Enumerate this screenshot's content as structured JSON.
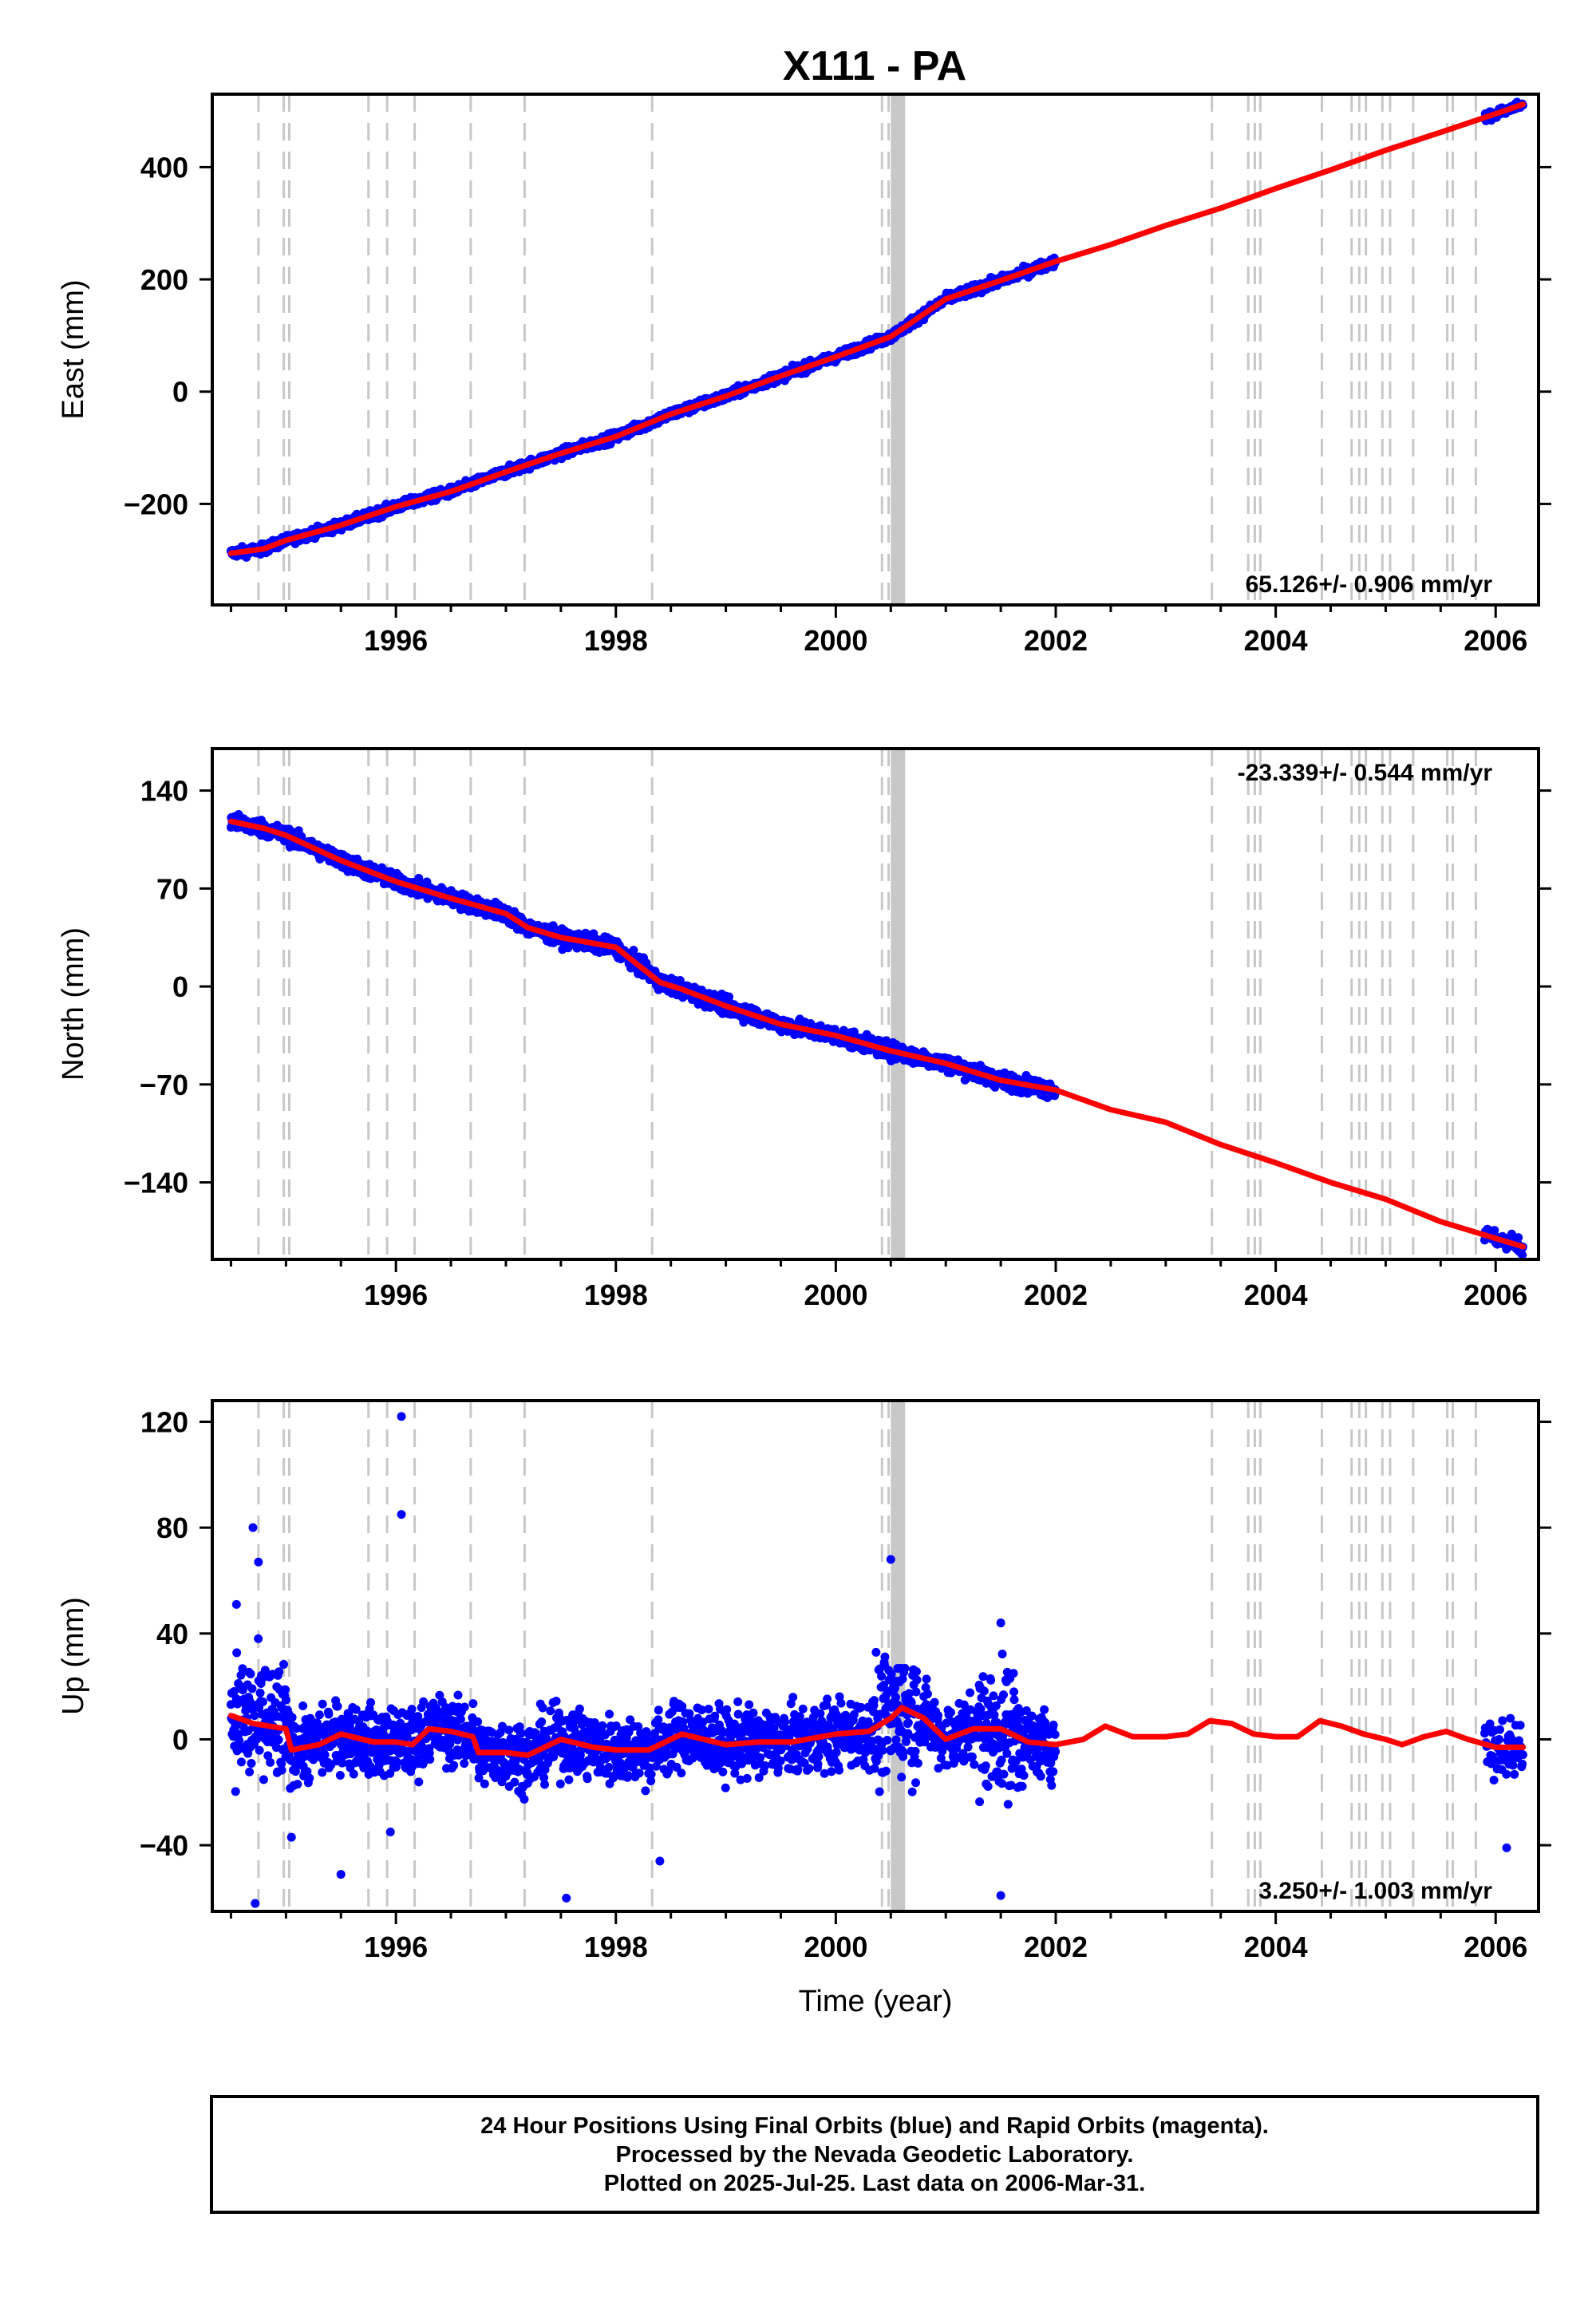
{
  "title": "X111 - PA",
  "colors": {
    "final_orbits": "#0000ff",
    "model": "#ff0000",
    "event_lines": "#c8c8c8",
    "axes": "#000000"
  },
  "footer": {
    "line1": "24 Hour Positions Using Final Orbits (blue) and Rapid Orbits (magenta).",
    "line2": "Processed by the Nevada Geodetic Laboratory.",
    "line3": "Plotted on 2025-Jul-25. Last data on 2006-Mar-31."
  },
  "chart_data": [
    {
      "type": "scatter",
      "component": "east",
      "ylabel": "East (mm)",
      "xlabel": "",
      "rate_label": "65.126+/- 0.906 mm/yr",
      "rate_position": "bottom-right",
      "xlim": [
        1994.33,
        2006.39
      ],
      "ylim": [
        -380,
        530
      ],
      "xticks": [
        1996,
        1998,
        2000,
        2002,
        2004,
        2006
      ],
      "yticks": [
        -200,
        0,
        200,
        400
      ],
      "data_span": [
        1994.5,
        2002.0
      ],
      "late_data_span": [
        2005.9,
        2006.25
      ],
      "rate_mm_per_yr": 65.126,
      "scatter_noise_mm": 6,
      "model": {
        "x": [
          1994.5,
          1994.8,
          1995.0,
          1995.5,
          1996.0,
          1996.5,
          1997.0,
          1997.5,
          1998.0,
          1998.5,
          1999.0,
          1999.5,
          2000.0,
          2000.5,
          2001.0,
          2001.5,
          2002.0,
          2002.5,
          2003.0,
          2003.5,
          2004.0,
          2004.5,
          2005.0,
          2005.5,
          2006.0,
          2006.25
        ],
        "y": [
          -288,
          -280,
          -265,
          -238,
          -205,
          -178,
          -143,
          -110,
          -80,
          -40,
          -8,
          28,
          62,
          98,
          165,
          198,
          232,
          262,
          296,
          327,
          362,
          395,
          430,
          462,
          495,
          512
        ]
      }
    },
    {
      "type": "scatter",
      "component": "north",
      "ylabel": "North (mm)",
      "xlabel": "",
      "rate_label": "-23.339+/- 0.544 mm/yr",
      "rate_position": "top-right",
      "xlim": [
        1994.33,
        2006.39
      ],
      "ylim": [
        -195,
        170
      ],
      "xticks": [
        1996,
        1998,
        2000,
        2002,
        2004,
        2006
      ],
      "yticks": [
        -140,
        -70,
        0,
        70,
        140
      ],
      "data_span": [
        1994.5,
        2002.0
      ],
      "late_data_span": [
        2005.9,
        2006.25
      ],
      "rate_mm_per_yr": -23.339,
      "scatter_noise_mm": 4,
      "model": {
        "x": [
          1994.5,
          1994.8,
          1995.0,
          1995.5,
          1996.0,
          1996.5,
          1997.0,
          1997.2,
          1997.5,
          1998.0,
          1998.4,
          1998.6,
          1999.0,
          1999.5,
          2000.0,
          2000.5,
          2001.0,
          2001.5,
          2002.0,
          2002.5,
          2003.0,
          2003.5,
          2004.0,
          2004.5,
          2005.0,
          2005.5,
          2006.0,
          2006.25
        ],
        "y": [
          118,
          113,
          108,
          90,
          75,
          63,
          52,
          42,
          35,
          28,
          3,
          -2,
          -14,
          -27,
          -35,
          -46,
          -55,
          -67,
          -74,
          -88,
          -97,
          -113,
          -126,
          -140,
          -152,
          -168,
          -180,
          -186
        ]
      }
    },
    {
      "type": "scatter",
      "component": "up",
      "ylabel": "Up (mm)",
      "xlabel": "Time (year)",
      "rate_label": "3.250+/- 1.003 mm/yr",
      "rate_position": "bottom-right",
      "xlim": [
        1994.33,
        2006.39
      ],
      "ylim": [
        -65,
        128
      ],
      "xticks": [
        1996,
        1998,
        2000,
        2002,
        2004,
        2006
      ],
      "yticks": [
        -40,
        0,
        40,
        80,
        120
      ],
      "data_span": [
        1994.5,
        2002.0
      ],
      "late_data_span": [
        2005.9,
        2006.25
      ],
      "rate_mm_per_yr": 3.25,
      "scatter_noise_mm": 9,
      "outliers": [
        {
          "x": 1996.05,
          "y": 122
        },
        {
          "x": 1996.05,
          "y": 85
        },
        {
          "x": 1994.7,
          "y": 80
        },
        {
          "x": 1994.75,
          "y": 67
        },
        {
          "x": 2000.5,
          "y": 68
        },
        {
          "x": 1994.55,
          "y": 51
        },
        {
          "x": 2001.5,
          "y": 44
        },
        {
          "x": 1994.72,
          "y": -62
        },
        {
          "x": 1997.55,
          "y": -60
        },
        {
          "x": 2001.5,
          "y": -59
        },
        {
          "x": 1995.5,
          "y": -51
        },
        {
          "x": 1998.4,
          "y": -46
        },
        {
          "x": 2006.1,
          "y": -41
        },
        {
          "x": 1995.95,
          "y": -35
        },
        {
          "x": 1995.05,
          "y": -37
        }
      ],
      "model": {
        "x": [
          1994.5,
          1994.7,
          1995.0,
          1995.05,
          1995.3,
          1995.5,
          1995.8,
          1996.0,
          1996.15,
          1996.3,
          1996.5,
          1996.7,
          1996.75,
          1997.0,
          1997.2,
          1997.5,
          1997.8,
          1998.0,
          1998.3,
          1998.6,
          1999.0,
          1999.3,
          1999.6,
          2000.0,
          2000.3,
          2000.5,
          2000.6,
          2000.8,
          2001.0,
          2001.25,
          2001.5,
          2001.75,
          2002.0,
          2002.25,
          2002.45,
          2002.7,
          2003.0,
          2003.2,
          2003.4,
          2003.6,
          2003.8,
          2004.0,
          2004.2,
          2004.4,
          2004.6,
          2004.8,
          2005.0,
          2005.15,
          2005.35,
          2005.55,
          2005.75,
          2006.0,
          2006.25
        ],
        "y": [
          9,
          6,
          4,
          -4,
          -2,
          2,
          -1,
          -1,
          -2,
          4,
          3,
          1,
          -5,
          -5,
          -6,
          0,
          -3,
          -4,
          -4,
          2,
          -2,
          -1,
          -1,
          2,
          3,
          8,
          12,
          8,
          0,
          4,
          4,
          -1,
          -2,
          0,
          5,
          1,
          1,
          2,
          7,
          6,
          2,
          1,
          1,
          7,
          5,
          2,
          0,
          -2,
          1,
          3,
          0,
          -3,
          -3
        ]
      }
    }
  ],
  "event_lines": {
    "dashed": [
      1994.75,
      1994.98,
      1995.03,
      1995.75,
      1995.92,
      1996.17,
      1996.68,
      1997.17,
      1998.33,
      2000.42,
      2000.48,
      2003.42,
      2003.75,
      2003.81,
      2003.86,
      2004.42,
      2004.69,
      2004.76,
      2004.82,
      2004.97,
      2005.04,
      2005.25,
      2005.56,
      2005.61,
      2005.82
    ],
    "solid_band": [
      2000.5,
      2000.63
    ]
  }
}
